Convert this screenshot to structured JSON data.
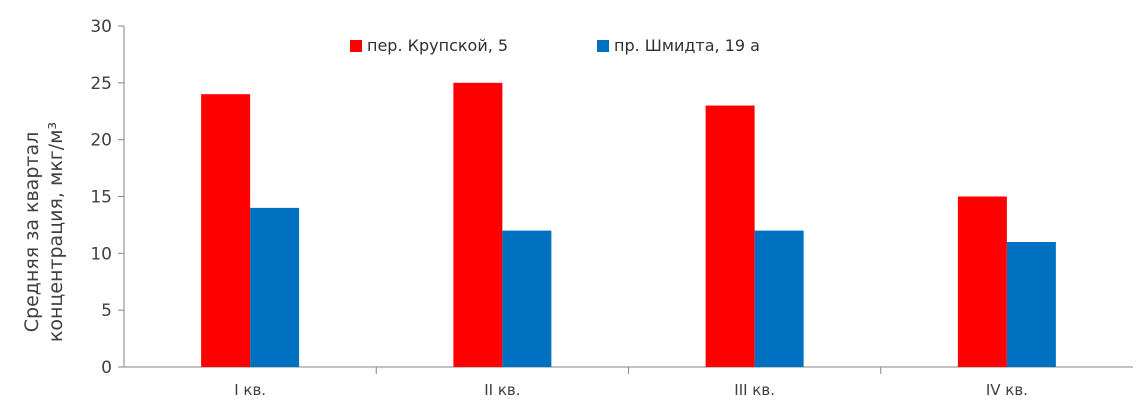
{
  "chart_data": {
    "type": "bar",
    "title": "",
    "xlabel": "",
    "ylabel": [
      "Средняя за квартал",
      "концентрация, мкг/м³"
    ],
    "ylim": [
      0,
      30
    ],
    "yticks": [
      0,
      5,
      10,
      15,
      20,
      25,
      30
    ],
    "categories": [
      "I кв.",
      "II кв.",
      "III кв.",
      "IV кв."
    ],
    "series": [
      {
        "name": "пер. Крупской, 5",
        "color": "#ff0000",
        "values": [
          24,
          25,
          23,
          15
        ]
      },
      {
        "name": "пр. Шмидта, 19 а",
        "color": "#0070c0",
        "values": [
          14,
          12,
          12,
          11
        ]
      }
    ],
    "grid": false,
    "legend_position": "top-center"
  }
}
